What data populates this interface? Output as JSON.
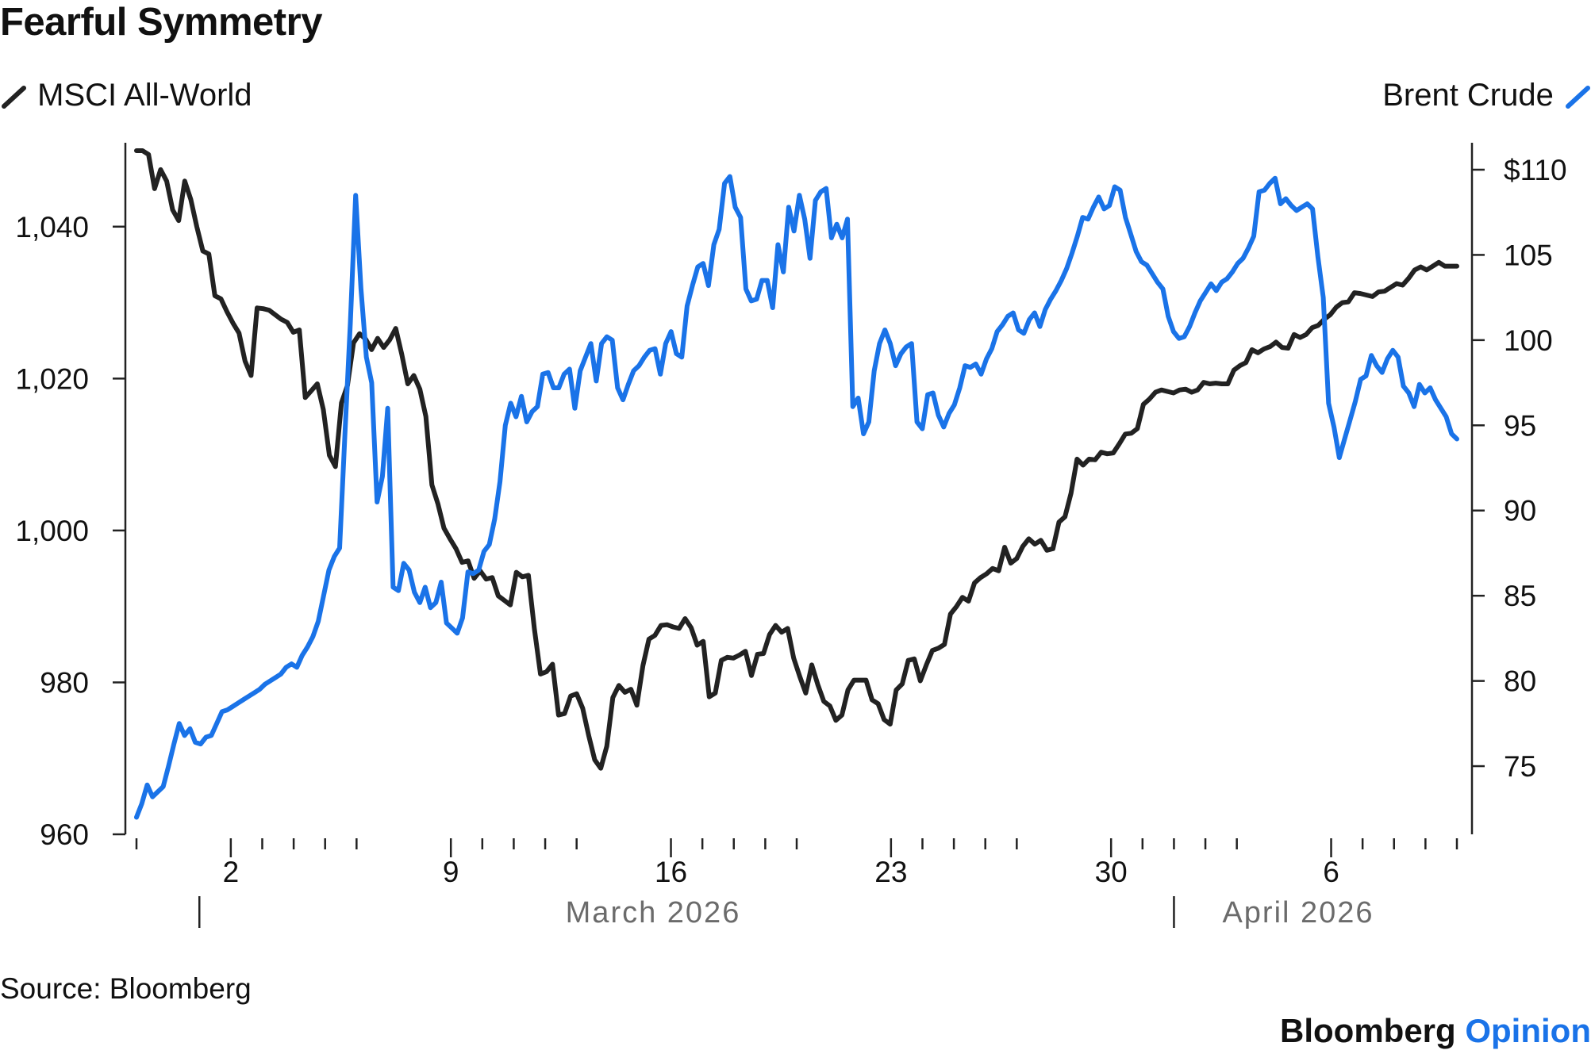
{
  "title": "Fearful Symmetry",
  "source": "Source: Bloomberg",
  "brand": {
    "name": "Bloomberg",
    "suffix": "Opinion"
  },
  "colors": {
    "msci": "#222222",
    "brent": "#1a73e8",
    "month_label": "#6b6b6b"
  },
  "chart_data": {
    "type": "line",
    "title": "Fearful Symmetry",
    "series": [
      {
        "name": "MSCI All-World",
        "axis": "left",
        "color": "#222222",
        "icon": "line-icon",
        "values": [
          1050.0,
          1050.0,
          1049.5,
          1045.0,
          1047.5,
          1046.0,
          1042.2,
          1040.8,
          1046.0,
          1043.6,
          1040.0,
          1036.8,
          1036.4,
          1030.9,
          1030.5,
          1028.8,
          1027.3,
          1026.0,
          1022.3,
          1020.4,
          1029.3,
          1029.2,
          1029.0,
          1028.4,
          1027.8,
          1027.4,
          1026.1,
          1026.4,
          1017.5,
          1018.4,
          1019.3,
          1015.9,
          1009.9,
          1008.4,
          1016.8,
          1019.1,
          1024.7,
          1025.9,
          1025.2,
          1023.8,
          1025.3,
          1024.1,
          1025.1,
          1026.6,
          1023.2,
          1019.3,
          1020.4,
          1018.6,
          1015.0,
          1006.0,
          1003.5,
          1000.3,
          998.9,
          997.6,
          995.8,
          996.0,
          993.7,
          994.7,
          993.6,
          993.8,
          991.4,
          990.8,
          990.2,
          994.5,
          993.9,
          994.1,
          987.0,
          981.1,
          981.4,
          982.4,
          975.7,
          975.9,
          978.2,
          978.5,
          976.6,
          973.0,
          969.8,
          968.7,
          971.6,
          978.0,
          979.6,
          978.7,
          979.1,
          977.0,
          982.2,
          985.7,
          986.2,
          987.5,
          987.6,
          987.3,
          987.1,
          988.4,
          987.2,
          984.9,
          985.4,
          978.1,
          978.6,
          982.9,
          983.3,
          983.2,
          983.6,
          984.1,
          980.9,
          983.7,
          983.8,
          986.3,
          987.5,
          986.6,
          987.1,
          983.2,
          980.8,
          978.6,
          982.3,
          979.7,
          977.5,
          976.9,
          975.0,
          975.7,
          979.0,
          980.3,
          980.3,
          980.3,
          977.7,
          977.2,
          975.1,
          974.5,
          979.0,
          979.8,
          982.9,
          983.1,
          980.2,
          982.3,
          984.2,
          984.5,
          985.0,
          989.0,
          990.0,
          991.2,
          990.7,
          993.1,
          993.8,
          994.3,
          995.0,
          994.7,
          997.8,
          995.7,
          996.3,
          997.9,
          998.9,
          998.2,
          998.7,
          997.4,
          997.6,
          1001.1,
          1001.8,
          1004.9,
          1009.4,
          1008.6,
          1009.4,
          1009.3,
          1010.3,
          1010.1,
          1010.2,
          1011.4,
          1012.7,
          1012.8,
          1013.4,
          1016.6,
          1017.3,
          1018.2,
          1018.5,
          1018.3,
          1018.1,
          1018.5,
          1018.6,
          1018.2,
          1018.5,
          1019.5,
          1019.3,
          1019.4,
          1019.3,
          1019.3,
          1021.1,
          1021.7,
          1022.1,
          1023.8,
          1023.4,
          1023.9,
          1024.2,
          1024.8,
          1024.1,
          1024.0,
          1025.8,
          1025.4,
          1025.8,
          1026.7,
          1027.0,
          1027.8,
          1028.4,
          1029.4,
          1030.0,
          1030.1,
          1031.3,
          1031.2,
          1031.0,
          1030.8,
          1031.4,
          1031.5,
          1032.0,
          1032.5,
          1032.3,
          1033.2,
          1034.3,
          1034.7,
          1034.3,
          1034.8,
          1035.3,
          1034.8,
          1034.8,
          1034.8
        ]
      },
      {
        "name": "Brent Crude",
        "axis": "right",
        "color": "#1a73e8",
        "icon": "line-icon",
        "values": [
          72.0,
          72.8,
          73.9,
          73.2,
          73.5,
          73.8,
          75.0,
          76.3,
          77.5,
          76.8,
          77.2,
          76.4,
          76.3,
          76.7,
          76.8,
          77.5,
          78.2,
          78.3,
          78.5,
          78.7,
          78.9,
          79.1,
          79.3,
          79.5,
          79.8,
          80.0,
          80.2,
          80.4,
          80.8,
          81.0,
          80.8,
          81.5,
          82.0,
          82.6,
          83.5,
          85.0,
          86.5,
          87.3,
          87.8,
          94.5,
          101.0,
          108.5,
          103.0,
          99.0,
          97.5,
          90.5,
          92.0,
          96.0,
          85.5,
          85.3,
          86.9,
          86.5,
          85.2,
          84.6,
          85.5,
          84.3,
          84.6,
          85.8,
          83.4,
          83.1,
          82.8,
          83.7,
          86.4,
          86.3,
          86.5,
          87.6,
          88.0,
          89.5,
          91.7,
          95.0,
          96.3,
          95.5,
          96.7,
          95.2,
          95.8,
          96.1,
          98.0,
          98.1,
          97.2,
          97.2,
          98.0,
          98.3,
          96.0,
          98.2,
          99.0,
          99.8,
          97.6,
          99.8,
          100.2,
          100.0,
          97.2,
          96.5,
          97.4,
          98.2,
          98.5,
          99.0,
          99.4,
          99.5,
          98.0,
          99.8,
          100.5,
          99.2,
          99.0,
          102.0,
          103.2,
          104.3,
          104.5,
          103.2,
          105.6,
          106.5,
          109.2,
          109.6,
          107.8,
          107.2,
          103.0,
          102.3,
          102.4,
          103.5,
          103.5,
          101.9,
          105.6,
          104.0,
          107.8,
          106.4,
          108.5,
          107.1,
          104.8,
          108.2,
          108.7,
          108.9,
          106.0,
          106.8,
          106.0,
          107.1,
          96.1,
          96.6,
          94.5,
          95.2,
          98.2,
          99.8,
          100.6,
          99.8,
          98.5,
          99.2,
          99.6,
          99.8,
          95.2,
          94.8,
          96.8,
          96.9,
          95.6,
          94.9,
          95.7,
          96.2,
          97.2,
          98.5,
          98.4,
          98.6,
          98.0,
          98.9,
          99.5,
          100.5,
          100.9,
          101.4,
          101.6,
          100.6,
          100.4,
          101.2,
          101.6,
          100.8,
          101.8,
          102.4,
          102.9,
          103.5,
          104.2,
          105.1,
          106.1,
          107.2,
          107.1,
          107.8,
          108.4,
          107.7,
          107.9,
          109.0,
          108.8,
          107.2,
          106.2,
          105.2,
          104.6,
          104.4,
          103.9,
          103.4,
          103.0,
          101.4,
          100.5,
          100.1,
          100.2,
          100.8,
          101.6,
          102.3,
          102.8,
          103.3,
          102.9,
          103.4,
          103.6,
          104.0,
          104.5,
          104.8,
          105.4,
          106.1,
          108.7,
          108.8,
          109.2,
          109.5,
          108.0,
          108.3,
          107.9,
          107.6,
          107.8,
          108.0,
          107.7,
          104.9,
          102.5,
          96.3,
          94.9,
          93.1,
          94.2,
          95.3,
          96.4,
          97.7,
          97.9,
          99.1,
          98.5,
          98.1,
          98.9,
          99.4,
          99.0,
          97.3,
          96.9,
          96.1,
          97.4,
          96.9,
          97.2,
          96.5,
          96.0,
          95.5,
          94.5,
          94.2
        ]
      }
    ],
    "left_axis": {
      "ylim": [
        960,
        1050
      ],
      "ticks": [
        "960",
        "980",
        "1,000",
        "1,020",
        "1,040"
      ],
      "tick_values": [
        960,
        980,
        1000,
        1020,
        1040
      ]
    },
    "right_axis": {
      "ylim": [
        71,
        112
      ],
      "ticks": [
        "75",
        "80",
        "85",
        "90",
        "95",
        "100",
        "105",
        "$110"
      ],
      "tick_values": [
        75,
        80,
        85,
        90,
        95,
        100,
        105,
        110
      ]
    },
    "x_axis": {
      "start": "2026-02-27",
      "end": "2026-04-10",
      "tick_labels": [
        {
          "label": "2",
          "date": "2026-03-02"
        },
        {
          "label": "9",
          "date": "2026-03-09"
        },
        {
          "label": "16",
          "date": "2026-03-16"
        },
        {
          "label": "23",
          "date": "2026-03-23"
        },
        {
          "label": "30",
          "date": "2026-03-30"
        },
        {
          "label": "6",
          "date": "2026-04-06"
        }
      ],
      "month_labels": [
        {
          "label": "March 2026",
          "date": "2026-03-01"
        },
        {
          "label": "April 2026",
          "date": "2026-04-01"
        }
      ]
    },
    "grid": false,
    "legend": [
      {
        "name": "MSCI All-World",
        "placement": "top-left"
      },
      {
        "name": "Brent Crude",
        "placement": "top-right"
      }
    ]
  }
}
